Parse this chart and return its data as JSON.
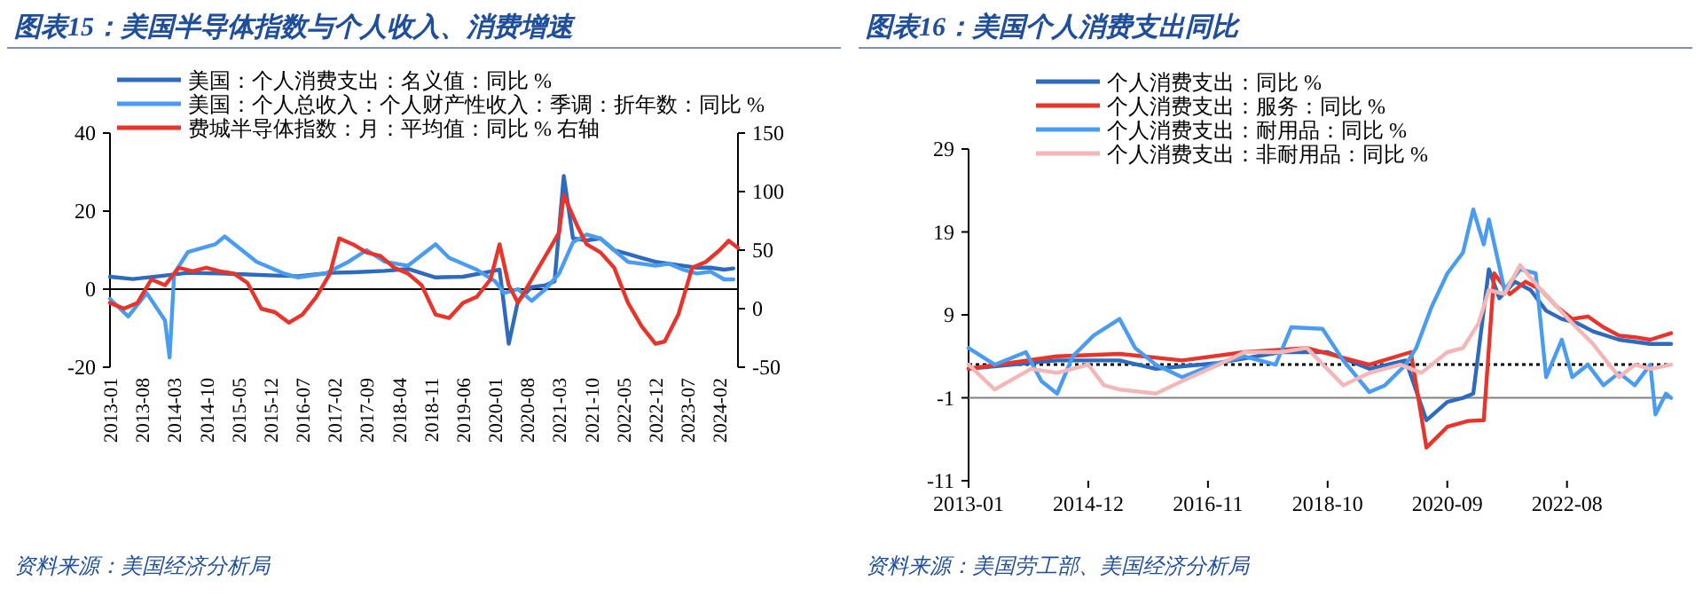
{
  "chart_data": [
    {
      "type": "line",
      "title": "图表15：美国半导体指数与个人收入、消费增速",
      "xlim": [
        "2013-01",
        "2024-06"
      ],
      "xticks": [
        "2013-01",
        "2013-08",
        "2014-03",
        "2014-10",
        "2015-05",
        "2015-12",
        "2016-07",
        "2017-02",
        "2017-09",
        "2018-04",
        "2018-11",
        "2019-06",
        "2020-01",
        "2020-08",
        "2021-03",
        "2021-10",
        "2022-05",
        "2022-12",
        "2023-07",
        "2024-02"
      ],
      "ylim": [
        -20,
        40
      ],
      "yticks": [
        -20,
        0,
        20,
        40
      ],
      "y2lim": [
        -50,
        150
      ],
      "y2ticks": [
        -50,
        0,
        50,
        100,
        150
      ],
      "legend": "top left",
      "grid": false,
      "ref_lines": [
        {
          "axis": "y",
          "value": 0,
          "color": "#000000",
          "line_style": "solid"
        }
      ],
      "annotations": [
        "资料来源：美国经济分析局"
      ],
      "series": [
        {
          "name": "美国：个人消费支出：名义值：同比 %",
          "color": "#2e6bbf",
          "x": [
            "2013-01",
            "2013-06",
            "2014-01",
            "2014-06",
            "2015-01",
            "2015-06",
            "2016-01",
            "2016-06",
            "2017-01",
            "2017-06",
            "2018-01",
            "2018-06",
            "2018-12",
            "2019-06",
            "2019-12",
            "2020-02",
            "2020-04",
            "2020-06",
            "2020-09",
            "2020-12",
            "2021-02",
            "2021-04",
            "2021-06",
            "2021-09",
            "2021-12",
            "2022-03",
            "2022-06",
            "2022-09",
            "2022-12",
            "2023-03",
            "2023-06",
            "2023-09",
            "2023-12",
            "2024-03",
            "2024-05"
          ],
          "values": [
            3.2,
            2.6,
            3.5,
            4.2,
            4,
            3.8,
            3.5,
            3.3,
            4.2,
            4.3,
            4.7,
            5.2,
            3,
            3.2,
            4.5,
            5,
            -14,
            -3,
            0.5,
            1,
            2,
            29,
            13,
            12.5,
            13,
            10,
            9,
            8,
            7,
            6.5,
            6,
            5.5,
            5.5,
            5,
            5.3
          ]
        },
        {
          "name": "美国：个人总收入：个人财产性收入：季调：折年数：同比 %",
          "color": "#4a9cf0",
          "x": [
            "2013-01",
            "2013-05",
            "2013-09",
            "2014-01",
            "2014-02",
            "2014-03",
            "2014-06",
            "2014-12",
            "2015-02",
            "2015-09",
            "2016-03",
            "2016-06",
            "2016-12",
            "2017-05",
            "2017-09",
            "2018-01",
            "2018-06",
            "2018-12",
            "2019-03",
            "2019-09",
            "2020-01",
            "2020-03",
            "2020-06",
            "2020-09",
            "2020-12",
            "2021-03",
            "2021-06",
            "2021-09",
            "2021-12",
            "2022-03",
            "2022-06",
            "2022-09",
            "2022-12",
            "2023-03",
            "2023-06",
            "2023-09",
            "2023-12",
            "2024-03",
            "2024-05"
          ],
          "values": [
            -2.5,
            -7,
            -1,
            -8,
            -17.5,
            4,
            9.5,
            11.5,
            13.5,
            7,
            4,
            3,
            4,
            7,
            10,
            7,
            6,
            11.5,
            8,
            5,
            2,
            -1,
            0,
            -3,
            0,
            4,
            12,
            14,
            13,
            10,
            7,
            6.5,
            6,
            6.5,
            5,
            4,
            4.5,
            2.5,
            2.5
          ]
        },
        {
          "name": "费城半导体指数：月：平均值：同比 % 右轴",
          "color": "#e8342a",
          "axis": "y2",
          "x": [
            "2013-01",
            "2013-04",
            "2013-07",
            "2013-10",
            "2014-01",
            "2014-04",
            "2014-07",
            "2014-10",
            "2015-01",
            "2015-04",
            "2015-07",
            "2015-10",
            "2016-01",
            "2016-04",
            "2016-07",
            "2016-10",
            "2017-01",
            "2017-03",
            "2017-06",
            "2017-09",
            "2017-12",
            "2018-03",
            "2018-06",
            "2018-09",
            "2018-12",
            "2019-03",
            "2019-06",
            "2019-09",
            "2019-12",
            "2020-02",
            "2020-04",
            "2020-06",
            "2020-09",
            "2020-12",
            "2021-03",
            "2021-04",
            "2021-07",
            "2021-09",
            "2021-12",
            "2022-03",
            "2022-06",
            "2022-09",
            "2022-12",
            "2023-02",
            "2023-05",
            "2023-08",
            "2023-11",
            "2024-02",
            "2024-04",
            "2024-06"
          ],
          "values": [
            5,
            0,
            5,
            25,
            20,
            35,
            32,
            35,
            32,
            30,
            22,
            0,
            -3,
            -12,
            -5,
            10,
            30,
            60,
            55,
            48,
            45,
            35,
            30,
            20,
            -5,
            -8,
            5,
            10,
            25,
            55,
            20,
            5,
            25,
            45,
            65,
            97,
            70,
            55,
            48,
            35,
            5,
            -15,
            -30,
            -28,
            -5,
            35,
            40,
            50,
            58,
            52
          ]
        }
      ]
    },
    {
      "type": "line",
      "title": "图表16：美国个人消费支出同比",
      "xlim": [
        "2013-01",
        "2024-04"
      ],
      "xticks": [
        "2013-01",
        "2014-12",
        "2016-11",
        "2018-10",
        "2020-09",
        "2022-08"
      ],
      "ylim": [
        -11,
        29
      ],
      "yticks": [
        -11,
        -1,
        9,
        19,
        29
      ],
      "legend": "top",
      "grid": false,
      "ref_lines": [
        {
          "axis": "y",
          "value": -1,
          "color": "#808080",
          "line_style": "solid"
        },
        {
          "axis": "y",
          "value": 3,
          "color": "#000000",
          "line_style": "dotted"
        }
      ],
      "annotations": [
        "资料来源：美国劳工部、美国经济分析局"
      ],
      "series": [
        {
          "name": "个人消费支出：同比 %",
          "color": "#2e6bbf",
          "x": [
            "2013-01",
            "2014-06",
            "2015-06",
            "2016-01",
            "2017-01",
            "2018-01",
            "2018-10",
            "2019-06",
            "2020-01",
            "2020-05",
            "2020-09",
            "2020-12",
            "2021-02",
            "2021-05",
            "2021-07",
            "2021-10",
            "2022-01",
            "2022-04",
            "2022-07",
            "2022-10",
            "2023-01",
            "2023-06",
            "2023-12",
            "2024-04"
          ],
          "values": [
            2.5,
            3.5,
            3.5,
            2.5,
            3.2,
            4.5,
            4.5,
            2.5,
            3.5,
            -3.7,
            -1.5,
            -1,
            -0.5,
            14.5,
            11,
            13,
            12,
            9.5,
            8.5,
            8,
            7,
            6,
            5.5,
            5.5
          ]
        },
        {
          "name": "个人消费支出：服务：同比 %",
          "color": "#e8342a",
          "x": [
            "2013-01",
            "2014-06",
            "2015-06",
            "2016-06",
            "2017-06",
            "2018-06",
            "2019-06",
            "2020-02",
            "2020-05",
            "2020-09",
            "2021-01",
            "2021-04",
            "2021-06",
            "2021-09",
            "2021-12",
            "2022-03",
            "2022-06",
            "2022-09",
            "2022-12",
            "2023-03",
            "2023-06",
            "2023-09",
            "2023-12",
            "2024-04"
          ],
          "values": [
            2.5,
            4,
            4.3,
            3.5,
            4.5,
            5,
            3,
            4.5,
            -7,
            -4.5,
            -3.8,
            -3.7,
            14,
            11.5,
            13,
            12,
            10,
            8.5,
            8.8,
            7.5,
            6.5,
            6.3,
            6,
            6.8
          ]
        },
        {
          "name": "个人消费支出：耐用品：同比 %",
          "color": "#4a9cf0",
          "x": [
            "2013-01",
            "2013-06",
            "2013-12",
            "2014-03",
            "2014-06",
            "2014-09",
            "2015-01",
            "2015-06",
            "2015-09",
            "2016-01",
            "2016-06",
            "2016-12",
            "2017-06",
            "2017-12",
            "2018-03",
            "2018-09",
            "2019-01",
            "2019-06",
            "2019-09",
            "2020-01",
            "2020-03",
            "2020-06",
            "2020-09",
            "2020-12",
            "2021-02",
            "2021-04",
            "2021-05",
            "2021-08",
            "2021-11",
            "2022-02",
            "2022-04",
            "2022-07",
            "2022-09",
            "2022-12",
            "2023-03",
            "2023-06",
            "2023-09",
            "2023-12",
            "2024-01",
            "2024-03",
            "2024-04"
          ],
          "values": [
            5,
            3,
            4.5,
            1,
            -0.5,
            4,
            6.5,
            8.5,
            5,
            3,
            1.5,
            3,
            4,
            3,
            7.5,
            7.3,
            3.5,
            -0.3,
            0.5,
            3,
            5,
            10,
            14,
            16.5,
            21.7,
            17.5,
            20.5,
            12,
            14.5,
            14,
            1.5,
            6,
            1.5,
            3,
            0.5,
            2,
            0.5,
            3,
            -3,
            -0.5,
            -1
          ]
        },
        {
          "name": "个人消费支出：非耐用品：同比 %",
          "color": "#f4b6b6",
          "x": [
            "2013-01",
            "2013-06",
            "2014-01",
            "2014-06",
            "2014-12",
            "2015-03",
            "2015-06",
            "2016-01",
            "2016-06",
            "2017-01",
            "2017-06",
            "2018-01",
            "2018-06",
            "2019-01",
            "2019-06",
            "2019-12",
            "2020-04",
            "2020-09",
            "2020-12",
            "2021-03",
            "2021-05",
            "2021-08",
            "2021-11",
            "2022-03",
            "2022-06",
            "2022-09",
            "2023-01",
            "2023-06",
            "2023-09",
            "2023-12",
            "2024-04"
          ],
          "values": [
            3,
            0,
            2.5,
            2,
            3,
            0.5,
            0,
            -0.5,
            1,
            3,
            4.5,
            4.5,
            5,
            0.5,
            2,
            3,
            2,
            4.5,
            5,
            8,
            12,
            11.5,
            15,
            12,
            10,
            8,
            5.5,
            1.5,
            3,
            2.5,
            3
          ]
        }
      ]
    }
  ]
}
